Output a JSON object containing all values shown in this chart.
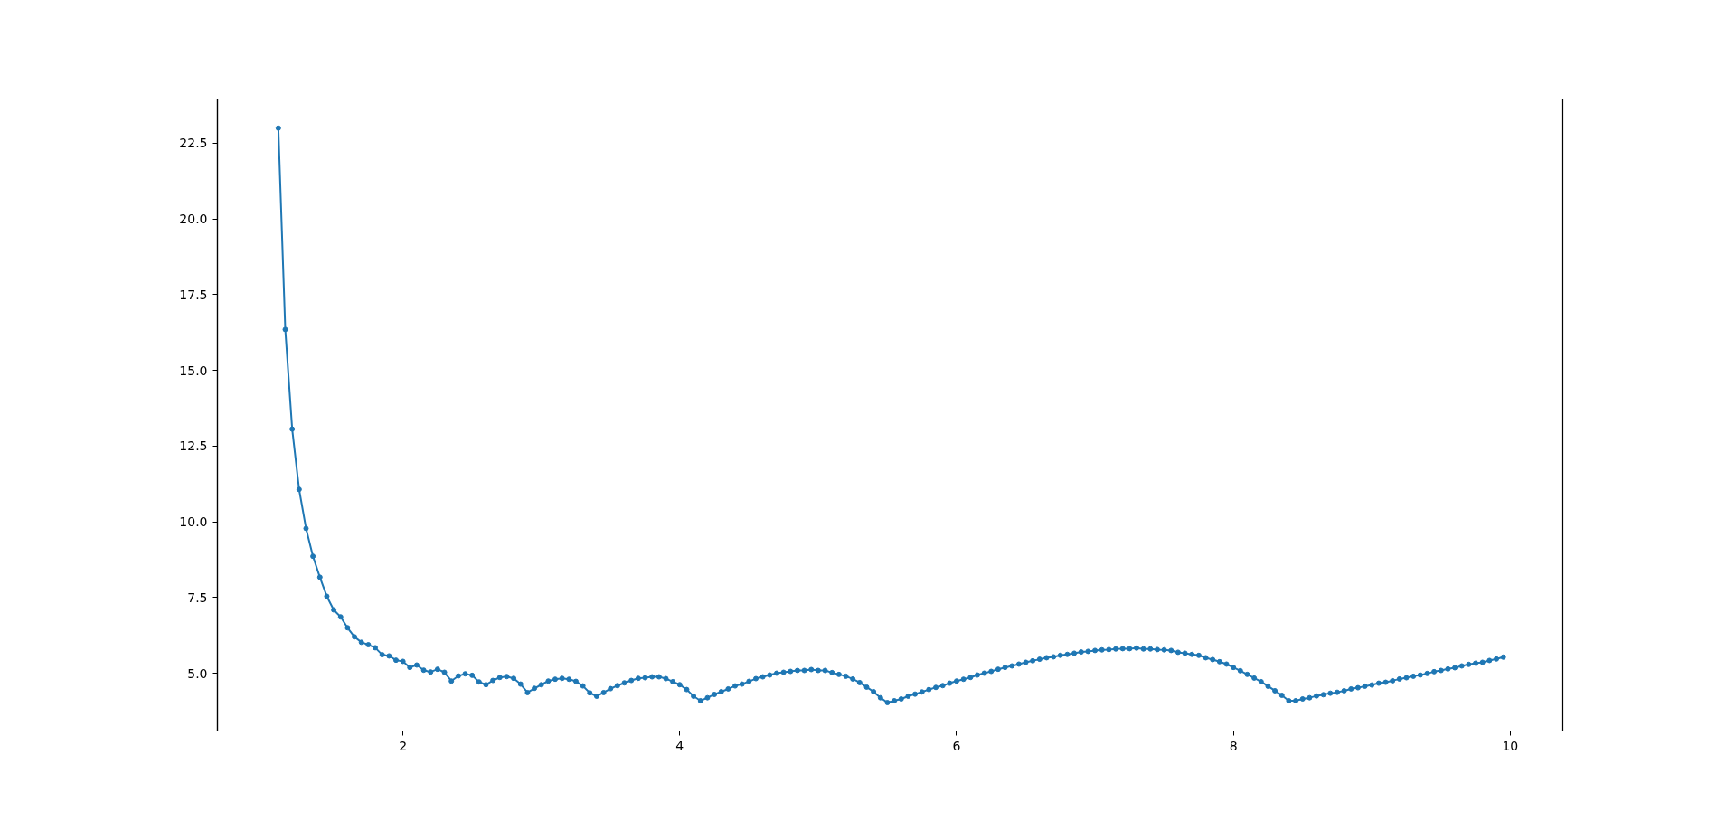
{
  "chart_data": {
    "type": "line",
    "x": [
      1.1,
      1.15,
      1.2,
      1.25,
      1.3,
      1.35,
      1.4,
      1.45,
      1.5,
      1.55,
      1.6,
      1.65,
      1.7,
      1.75,
      1.8,
      1.85,
      1.9,
      1.95,
      2.0,
      2.05,
      2.1,
      2.15,
      2.2,
      2.25,
      2.3,
      2.35,
      2.4,
      2.45,
      2.5,
      2.55,
      2.6,
      2.65,
      2.7,
      2.75,
      2.8,
      2.85,
      2.9,
      2.95,
      3.0,
      3.05,
      3.1,
      3.15,
      3.2,
      3.25,
      3.3,
      3.35,
      3.4,
      3.45,
      3.5,
      3.55,
      3.6,
      3.65,
      3.7,
      3.75,
      3.8,
      3.85,
      3.9,
      3.95,
      4.0,
      4.05,
      4.1,
      4.15,
      4.2,
      4.25,
      4.3,
      4.35,
      4.4,
      4.45,
      4.5,
      4.55,
      4.6,
      4.65,
      4.7,
      4.75,
      4.8,
      4.85,
      4.9,
      4.95,
      5.0,
      5.05,
      5.1,
      5.15,
      5.2,
      5.25,
      5.3,
      5.35,
      5.4,
      5.45,
      5.5,
      5.55,
      5.6,
      5.65,
      5.7,
      5.75,
      5.8,
      5.85,
      5.9,
      5.95,
      6.0,
      6.05,
      6.1,
      6.15,
      6.2,
      6.25,
      6.3,
      6.35,
      6.4,
      6.45,
      6.5,
      6.55,
      6.6,
      6.65,
      6.7,
      6.75,
      6.8,
      6.85,
      6.9,
      6.95,
      7.0,
      7.05,
      7.1,
      7.15,
      7.2,
      7.25,
      7.3,
      7.35,
      7.4,
      7.45,
      7.5,
      7.55,
      7.6,
      7.65,
      7.7,
      7.75,
      7.8,
      7.85,
      7.9,
      7.95,
      8.0,
      8.05,
      8.1,
      8.15,
      8.2,
      8.25,
      8.3,
      8.35,
      8.4,
      8.45,
      8.5,
      8.55,
      8.6,
      8.65,
      8.7,
      8.75,
      8.8,
      8.85,
      8.9,
      8.95,
      9.0,
      9.05,
      9.1,
      9.15,
      9.2,
      9.25,
      9.3,
      9.35,
      9.4,
      9.45,
      9.5,
      9.55,
      9.6,
      9.65,
      9.7,
      9.75,
      9.8,
      9.85,
      9.9,
      9.95
    ],
    "series": [
      {
        "color": "#1f77b4",
        "values": [
          23.0,
          16.35,
          13.06,
          11.07,
          9.78,
          8.86,
          8.17,
          7.54,
          7.09,
          6.86,
          6.5,
          6.2,
          6.02,
          5.94,
          5.84,
          5.61,
          5.57,
          5.43,
          5.39,
          5.19,
          5.27,
          5.1,
          5.04,
          5.13,
          5.03,
          4.74,
          4.91,
          4.98,
          4.93,
          4.71,
          4.62,
          4.76,
          4.86,
          4.89,
          4.83,
          4.64,
          4.36,
          4.5,
          4.62,
          4.74,
          4.8,
          4.83,
          4.8,
          4.73,
          4.58,
          4.35,
          4.24,
          4.36,
          4.49,
          4.59,
          4.68,
          4.76,
          4.83,
          4.85,
          4.88,
          4.88,
          4.82,
          4.72,
          4.62,
          4.46,
          4.24,
          4.09,
          4.19,
          4.3,
          4.39,
          4.48,
          4.58,
          4.64,
          4.73,
          4.82,
          4.88,
          4.94,
          5.0,
          5.03,
          5.06,
          5.09,
          5.09,
          5.12,
          5.09,
          5.09,
          5.02,
          4.96,
          4.9,
          4.81,
          4.69,
          4.54,
          4.39,
          4.19,
          4.03,
          4.09,
          4.15,
          4.24,
          4.31,
          4.38,
          4.46,
          4.53,
          4.59,
          4.67,
          4.74,
          4.8,
          4.86,
          4.94,
          5.0,
          5.06,
          5.13,
          5.19,
          5.24,
          5.3,
          5.36,
          5.41,
          5.46,
          5.51,
          5.54,
          5.59,
          5.62,
          5.66,
          5.7,
          5.72,
          5.75,
          5.77,
          5.78,
          5.8,
          5.81,
          5.81,
          5.83,
          5.8,
          5.8,
          5.78,
          5.77,
          5.75,
          5.69,
          5.66,
          5.62,
          5.59,
          5.51,
          5.45,
          5.38,
          5.3,
          5.19,
          5.08,
          4.96,
          4.84,
          4.72,
          4.57,
          4.42,
          4.27,
          4.09,
          4.09,
          4.15,
          4.19,
          4.25,
          4.29,
          4.34,
          4.37,
          4.42,
          4.48,
          4.52,
          4.57,
          4.61,
          4.67,
          4.7,
          4.75,
          4.81,
          4.85,
          4.9,
          4.94,
          4.99,
          5.05,
          5.09,
          5.14,
          5.18,
          5.24,
          5.29,
          5.33,
          5.36,
          5.42,
          5.47,
          5.53
        ]
      }
    ],
    "xlim": [
      0.66,
      10.38
    ],
    "ylim": [
      3.09,
      23.96
    ],
    "xticks": [
      2,
      4,
      6,
      8,
      10
    ],
    "yticks": [
      {
        "value": 5,
        "label": "5.0"
      },
      {
        "value": 7.5,
        "label": "7.5"
      },
      {
        "value": 10,
        "label": "10.0"
      },
      {
        "value": 12.5,
        "label": "12.5"
      },
      {
        "value": 15,
        "label": "15.0"
      },
      {
        "value": 17.5,
        "label": "17.5"
      },
      {
        "value": 20,
        "label": "20.0"
      },
      {
        "value": 22.5,
        "label": "22.5"
      }
    ],
    "marker": "circle",
    "line_style": "solid",
    "grid": false
  }
}
